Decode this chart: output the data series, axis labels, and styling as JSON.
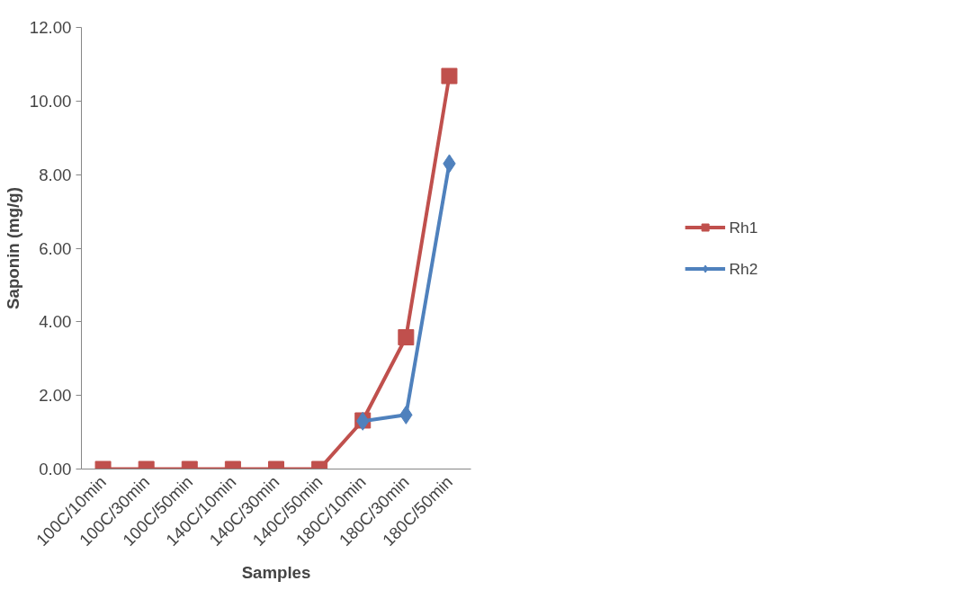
{
  "chart_data": {
    "type": "line",
    "xlabel": "Samples",
    "ylabel": "Saponin (mg/g)",
    "categories": [
      "100C/10min",
      "100C/30min",
      "100C/50min",
      "140C/10min",
      "140C/30min",
      "140C/50min",
      "180C/10min",
      "180C/30min",
      "180C/50min"
    ],
    "series": [
      {
        "name": "Rh1",
        "color": "#c0504d",
        "marker": "square",
        "values": [
          0,
          0,
          0,
          0,
          0,
          0,
          1.32,
          3.58,
          10.68
        ]
      },
      {
        "name": "Rh2",
        "color": "#4f81bd",
        "marker": "diamond",
        "values": [
          null,
          null,
          null,
          null,
          null,
          null,
          1.3,
          1.47,
          8.3
        ]
      }
    ],
    "ylim": [
      0,
      12
    ],
    "yticks": [
      {
        "value": 0,
        "label": "0.00"
      },
      {
        "value": 2,
        "label": "2.00"
      },
      {
        "value": 4,
        "label": "4.00"
      },
      {
        "value": 6,
        "label": "6.00"
      },
      {
        "value": 8,
        "label": "8.00"
      },
      {
        "value": 10,
        "label": "10.00"
      },
      {
        "value": 12,
        "label": "12.00"
      }
    ],
    "grid": false,
    "legend": "right",
    "line_style": "solid"
  }
}
